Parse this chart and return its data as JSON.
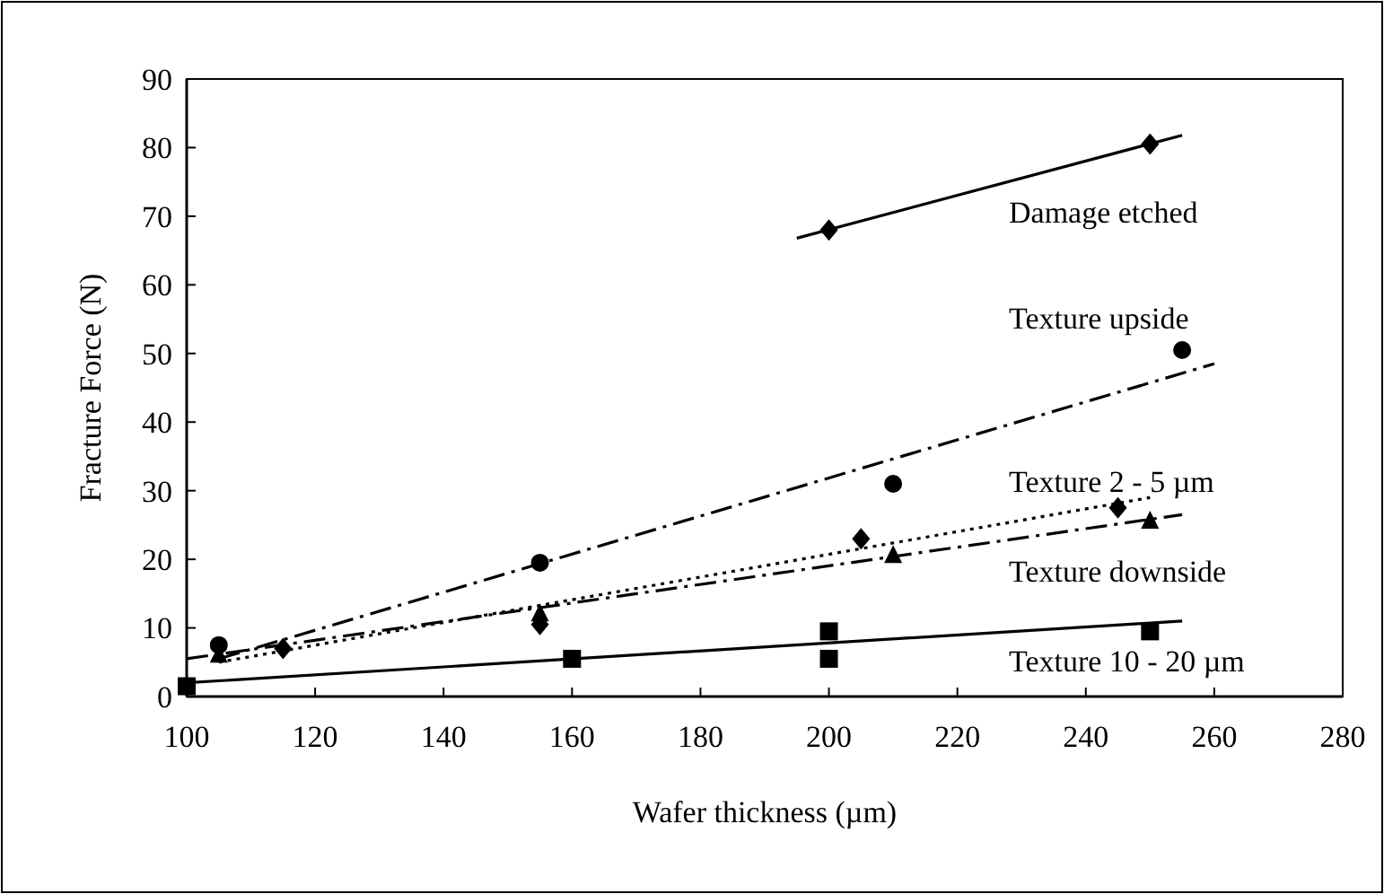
{
  "chart_data": {
    "type": "scatter",
    "xlabel": "Wafer thickness (µm)",
    "ylabel": "Fracture Force (N)",
    "xlim": [
      100,
      280
    ],
    "xticks": [
      100,
      120,
      140,
      160,
      180,
      200,
      220,
      240,
      260,
      280
    ],
    "ylim": [
      0,
      90
    ],
    "yticks": [
      0,
      10,
      20,
      30,
      40,
      50,
      60,
      70,
      80,
      90
    ],
    "grid": false,
    "series": [
      {
        "marker": "diamond",
        "color": "#000000",
        "x": [
          200,
          250
        ],
        "values": [
          68,
          80.5
        ]
      },
      {
        "type": "line",
        "marker": "none",
        "line_style": "solid",
        "color": "#000000",
        "x": [
          195,
          255
        ],
        "values": [
          66.8,
          81.8
        ]
      },
      {
        "marker": "circle",
        "color": "#000000",
        "x": [
          105,
          155,
          210,
          255
        ],
        "values": [
          7.5,
          19.5,
          31,
          50.5
        ]
      },
      {
        "type": "line",
        "marker": "none",
        "line_style": "dashed",
        "color": "#000000",
        "x": [
          105,
          260
        ],
        "values": [
          5.5,
          48.5
        ]
      },
      {
        "marker": "diamond",
        "color": "#000000",
        "x": [
          115,
          155,
          205,
          245
        ],
        "values": [
          7,
          10.5,
          23,
          27.5
        ]
      },
      {
        "type": "line",
        "marker": "none",
        "line_style": "dotted",
        "color": "#000000",
        "x": [
          105,
          250
        ],
        "values": [
          5,
          29
        ]
      },
      {
        "marker": "triangle",
        "color": "#000000",
        "x": [
          105,
          155,
          210,
          250
        ],
        "values": [
          6,
          12,
          20.5,
          25.5
        ]
      },
      {
        "type": "line",
        "marker": "none",
        "line_style": "dashed",
        "color": "#000000",
        "x": [
          100,
          255
        ],
        "values": [
          5.5,
          26.5
        ]
      },
      {
        "marker": "square",
        "color": "#000000",
        "x": [
          100,
          160,
          200,
          200,
          250
        ],
        "values": [
          1.5,
          5.5,
          9.5,
          5.5,
          9.5
        ]
      },
      {
        "type": "line",
        "marker": "none",
        "line_style": "solid",
        "color": "#000000",
        "x": [
          100,
          255
        ],
        "values": [
          2,
          11
        ]
      }
    ],
    "annotations": [
      "Damage etched",
      "Texture upside",
      "Texture 2 - 5 µm",
      "Texture downside",
      "Texture 10 - 20 µm"
    ]
  }
}
